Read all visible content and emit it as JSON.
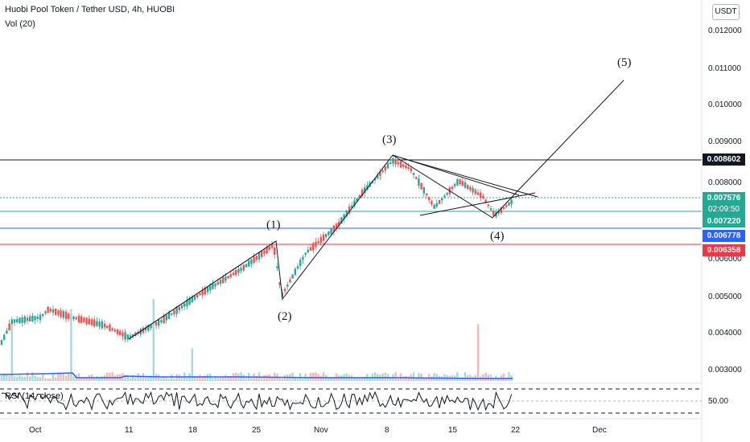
{
  "header": {
    "title": "Huobi Pool Token / Tether USD, 4h, HUOBI",
    "indicator": "Vol (20)"
  },
  "currency_button": "USDT",
  "price_axis": {
    "labels": [
      "0.012000",
      "0.011000",
      "0.010000",
      "0.009000",
      "0.008000",
      "0.006000",
      "0.005000",
      "0.004000",
      "0.003000"
    ]
  },
  "price_tags": {
    "resistance": {
      "value": "0.008602",
      "color": "#131722"
    },
    "last_price": {
      "value": "0.007576",
      "color": "#22ab94"
    },
    "countdown": {
      "value": "02:09:50",
      "color": "#22ab94"
    },
    "support_green": {
      "value": "0.007220",
      "color": "#22ab94"
    },
    "support_blue": {
      "value": "0.006778",
      "color": "#2962ff"
    },
    "support_red": {
      "value": "0.006358",
      "color": "#f23645"
    }
  },
  "time_axis": {
    "labels": [
      "Oct",
      "11",
      "18",
      "25",
      "Nov",
      "8",
      "15",
      "22",
      "Dec"
    ]
  },
  "waves": {
    "w1": "(1)",
    "w2": "(2)",
    "w3": "(3)",
    "w4": "(4)",
    "w5": "(5)"
  },
  "rsi": {
    "label": "RSI (14, close)",
    "value": "50.00"
  },
  "colors": {
    "up": "#26a69a",
    "down": "#ef5350",
    "volume_up": "#a4dcd5",
    "volume_down": "#f7b9b7",
    "volume_ma": "#2962ff"
  }
}
